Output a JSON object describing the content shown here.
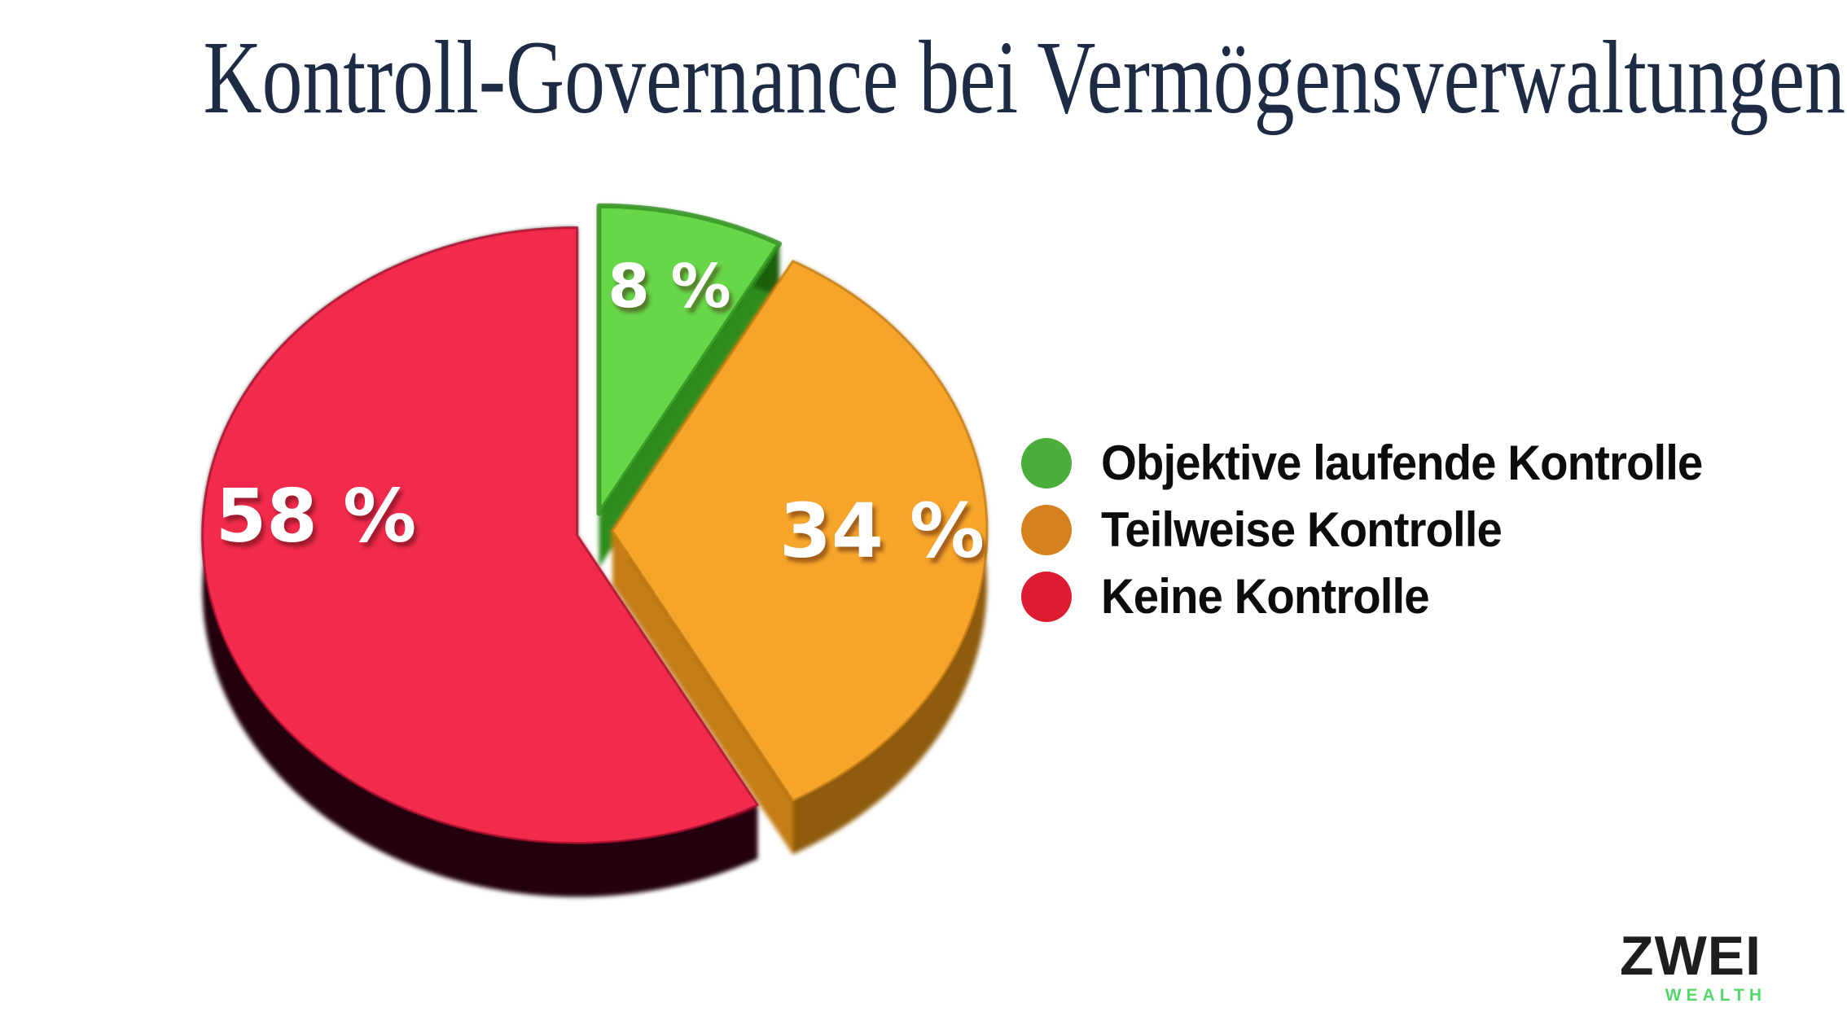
{
  "background_color": "#ffffff",
  "title_color": "#1d2b45",
  "legend_text_color": "#0c0c0c",
  "chart_data": {
    "type": "pie",
    "title": "Kontroll-Governance bei Vermögensverwaltungen",
    "unit": "%",
    "start_angle_deg": 0,
    "direction": "clockwise",
    "style": "3d-exploded",
    "legend_position": "right",
    "value_label_color": "#ffffff",
    "categories": [
      "Objektive laufende Kontrolle",
      "Teilweise Kontrolle",
      "Keine Kontrolle"
    ],
    "values": [
      8,
      34,
      58
    ],
    "slices": [
      {
        "label": "Objektive laufende Kontrolle",
        "value": 8,
        "display_label": "8 %",
        "top_color": "#67d648",
        "cut_color": "#2e8d1e",
        "wall_color": "#1b6111",
        "legend_color": "#4bae3b"
      },
      {
        "label": "Teilweise Kontrolle",
        "value": 34,
        "display_label": "34 %",
        "top_color": "#f6a42a",
        "cut_color": "#c57d13",
        "wall_color": "#8f5c07",
        "legend_color": "#d5821e"
      },
      {
        "label": "Keine Kontrolle",
        "value": 58,
        "display_label": "58 %",
        "top_color": "#f22a4c",
        "cut_color": "#a50f2d",
        "wall_color": "#200409",
        "legend_color": "#dc1c31"
      }
    ]
  },
  "logo": {
    "brand": "ZWEI",
    "sub": "WEALTH",
    "brand_color": "#1e1e1c",
    "sub_color": "#54d76a"
  }
}
